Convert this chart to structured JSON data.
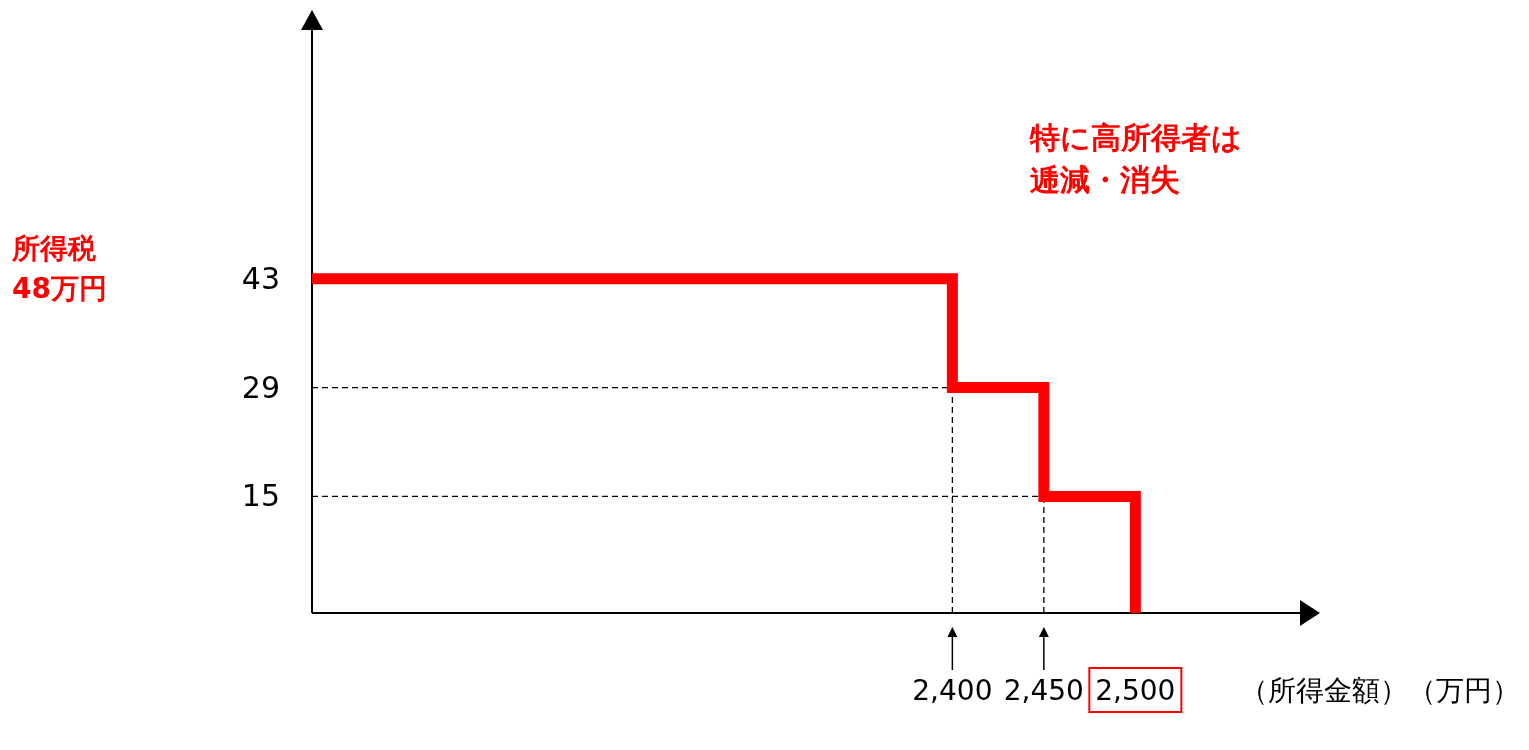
{
  "chart_data": {
    "type": "step",
    "ylabel": "所得税48万円",
    "xlabel": "（所得金額）（万円）",
    "annotations": [
      "特に高所得者は逓減・消失"
    ],
    "x": [
      2050,
      2400,
      2450,
      2500
    ],
    "series": [
      {
        "color": "#ff0000",
        "values": [
          43,
          29,
          15,
          0
        ]
      }
    ],
    "xlim": [
      2050,
      2590
    ],
    "ylim": [
      0,
      75
    ],
    "xticks": [
      {
        "value": 2400,
        "label": "2,400"
      },
      {
        "value": 2450,
        "label": "2,450"
      },
      {
        "value": 2500,
        "label": "2,500"
      }
    ],
    "yticks": [
      15,
      29,
      43
    ],
    "ref_lines": [
      {
        "axis": "y",
        "value": 29,
        "line_style": "dashed"
      },
      {
        "axis": "y",
        "value": 15,
        "line_style": "dashed"
      },
      {
        "axis": "x",
        "value": 2400,
        "line_style": "dashed"
      },
      {
        "axis": "x",
        "value": 2450,
        "line_style": "dashed"
      }
    ],
    "grid": false
  }
}
